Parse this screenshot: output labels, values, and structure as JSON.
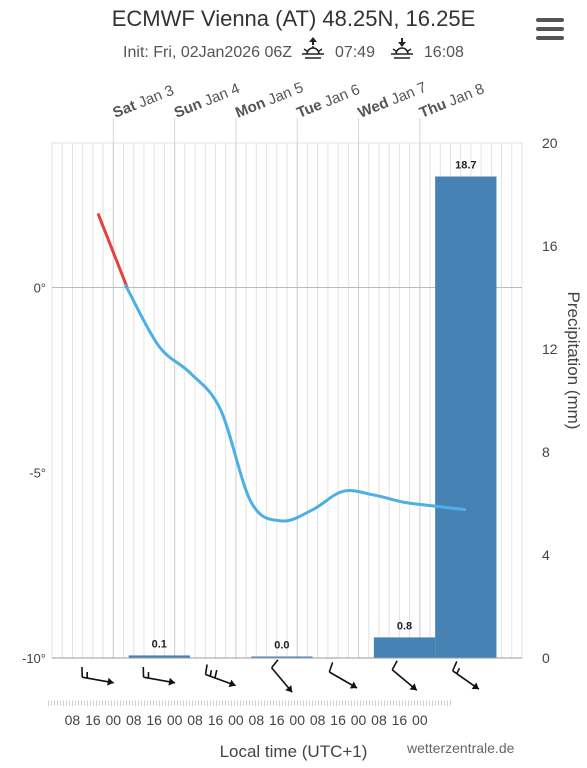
{
  "header": {
    "title": "ECMWF Vienna (AT) 48.25N, 16.25E",
    "init": "Init: Fri, 02Jan2026 06Z",
    "sunrise": "07:49",
    "sunset": "16:08"
  },
  "footer": {
    "xlabel": "Local time (UTC+1)",
    "credit": "wetterzentrale.de"
  },
  "colors": {
    "temp_line": "#4cb0e6",
    "temp_above_zero": "#e8403a",
    "precip_bar": "#4682b4",
    "grid": "#e3e3e3"
  },
  "icons": [
    "menu-icon",
    "sunrise-icon",
    "sunset-icon",
    "wind-barb-icon"
  ],
  "chart_data": {
    "type": "line+bar",
    "day_labels": [
      {
        "day": "Sat",
        "date": "Jan 3"
      },
      {
        "day": "Sun",
        "date": "Jan 4"
      },
      {
        "day": "Mon",
        "date": "Jan 5"
      },
      {
        "day": "Tue",
        "date": "Jan 6"
      },
      {
        "day": "Wed",
        "date": "Jan 7"
      },
      {
        "day": "Thu",
        "date": "Jan 8"
      }
    ],
    "hour_ticks": [
      "08",
      "16",
      "00",
      "08",
      "16",
      "00",
      "08",
      "16",
      "00",
      "08",
      "16",
      "00",
      "08",
      "16",
      "00",
      "08",
      "16",
      "00"
    ],
    "hour_tick_times": [
      -16,
      -8,
      0,
      8,
      16,
      24,
      32,
      40,
      48,
      56,
      64,
      72,
      80,
      88,
      96,
      104,
      112,
      120
    ],
    "xlim_hours": [
      -24,
      160
    ],
    "temperature": {
      "unit": "°",
      "ylim": [
        -10,
        3.9
      ],
      "ticks": [
        {
          "v": 0,
          "label": "0°"
        },
        {
          "v": -5,
          "label": "-5°"
        },
        {
          "v": -10,
          "label": "-10°"
        }
      ],
      "t_hours": [
        -6,
        6,
        18,
        30,
        42,
        54,
        66,
        78,
        90,
        102,
        114,
        126,
        138
      ],
      "values": [
        2.0,
        -0.1,
        -1.6,
        -2.3,
        -3.3,
        -5.8,
        -6.3,
        -6.0,
        -5.5,
        -5.6,
        -5.8,
        -5.9,
        -6.0
      ]
    },
    "precipitation": {
      "ylabel": "Precipitation (mm)",
      "ylim": [
        0,
        20
      ],
      "ticks": [
        0,
        4,
        8,
        12,
        16,
        20
      ],
      "bars": [
        {
          "start": 6,
          "end": 30,
          "value": 0.1,
          "label": "0.1"
        },
        {
          "start": 54,
          "end": 78,
          "value": 0.0,
          "label": "0.0"
        },
        {
          "start": 102,
          "end": 126,
          "value": 0.8,
          "label": "0.8"
        },
        {
          "start": 126,
          "end": 150,
          "value": 18.7,
          "label": "18.7"
        }
      ]
    },
    "wind_barbs": [
      {
        "t": -6,
        "dir_deg": 280,
        "barbs": 1.5
      },
      {
        "t": 18,
        "dir_deg": 280,
        "barbs": 1.5
      },
      {
        "t": 42,
        "dir_deg": 290,
        "barbs": 2
      },
      {
        "t": 66,
        "dir_deg": 320,
        "barbs": 1
      },
      {
        "t": 90,
        "dir_deg": 300,
        "barbs": 1
      },
      {
        "t": 114,
        "dir_deg": 310,
        "barbs": 1
      },
      {
        "t": 138,
        "dir_deg": 305,
        "barbs": 1.5
      }
    ]
  }
}
